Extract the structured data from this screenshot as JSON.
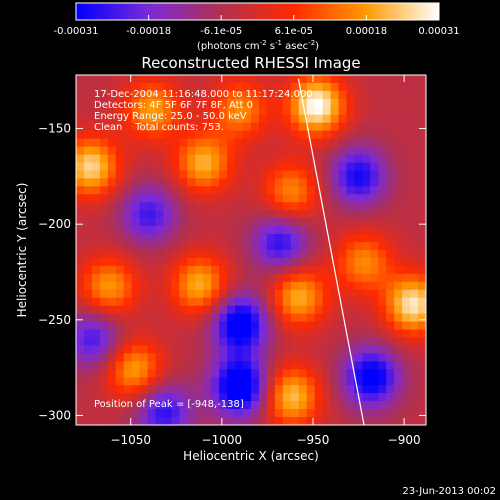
{
  "chart_data": {
    "type": "heatmap",
    "title": "Reconstructed RHESSI Image",
    "xlabel": "Heliocentric X (arcsec)",
    "ylabel": "Heliocentric Y (arcsec)",
    "xlim": [
      -1080,
      -888
    ],
    "ylim": [
      -305,
      -122
    ],
    "xticks": [
      -1050,
      -1000,
      -950,
      -900
    ],
    "yticks": [
      -150,
      -200,
      -250,
      -300
    ],
    "colorbar": {
      "ticks": [
        "-0.00031",
        "-0.00018",
        "-6.1e-05",
        "6.1e-05",
        "0.00018",
        "0.00031"
      ],
      "unit_parts": [
        "(photons cm",
        "-2",
        " s",
        "-1",
        " asec",
        "-2",
        ")"
      ],
      "min": -0.00031,
      "max": 0.00031,
      "colors": [
        "#0000ff",
        "#7a2ad8",
        "#b03050",
        "#ff2a00",
        "#ff9a00",
        "#ffffff"
      ]
    },
    "annotations": [
      "17-Dec-2004 11:16:48.000 to 11:17:24.000",
      "Detectors: 4F 5F 6F 7F 8F, Att 0",
      "Energy Range: 25.0 - 50.0 keV",
      "Clean    Total counts: 753."
    ],
    "peak_label": "Position of Peak = [-948,-138]",
    "peak": [
      -948,
      -138
    ],
    "limb_line": [
      [
        -958,
        -124
      ],
      [
        -922,
        -305
      ]
    ],
    "sources": [
      {
        "x": -948,
        "y": -138,
        "value": 0.00031
      },
      {
        "x": -1072,
        "y": -170,
        "value": 0.00026
      },
      {
        "x": -1038,
        "y": -140,
        "value": 0.0002
      },
      {
        "x": -1010,
        "y": -168,
        "value": 0.00022
      },
      {
        "x": -990,
        "y": -140,
        "value": 0.00018
      },
      {
        "x": -962,
        "y": -183,
        "value": 0.00018
      },
      {
        "x": -1062,
        "y": -233,
        "value": 0.0002
      },
      {
        "x": -1012,
        "y": -232,
        "value": 0.00022
      },
      {
        "x": -958,
        "y": -238,
        "value": 0.00022
      },
      {
        "x": -895,
        "y": -242,
        "value": 0.00028
      },
      {
        "x": -1048,
        "y": -276,
        "value": 0.00021
      },
      {
        "x": -962,
        "y": -290,
        "value": 0.00024
      },
      {
        "x": -922,
        "y": -220,
        "value": 0.00018
      },
      {
        "x": -1040,
        "y": -195,
        "value": -0.00018
      },
      {
        "x": -968,
        "y": -210,
        "value": -0.0002
      },
      {
        "x": -990,
        "y": -252,
        "value": -0.00028
      },
      {
        "x": -990,
        "y": -285,
        "value": -0.00031
      },
      {
        "x": -918,
        "y": -280,
        "value": -0.00026
      },
      {
        "x": -1032,
        "y": -298,
        "value": -0.0002
      },
      {
        "x": -925,
        "y": -175,
        "value": -0.00022
      },
      {
        "x": -1070,
        "y": -260,
        "value": -0.00018
      }
    ]
  },
  "footer": {
    "timestamp": "23-Jun-2013 00:02"
  }
}
